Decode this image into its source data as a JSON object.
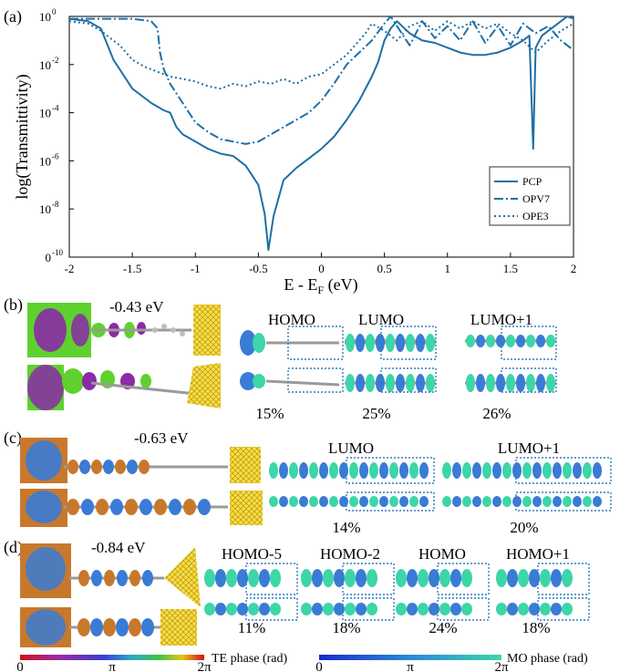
{
  "chart_data": {
    "type": "line",
    "panel_label": "(a)",
    "xlabel": "E - E",
    "xlabel_sub": "F",
    "xlabel_unit": " (eV)",
    "ylabel": "log(Transmittivity)",
    "xlim": [
      -2,
      2
    ],
    "ylim_exp": [
      -10,
      0
    ],
    "y_scale": "log",
    "x_ticks": [
      "-2",
      "-1.5",
      "-1",
      "-0.5",
      "0",
      "0.5",
      "1",
      "1.5",
      "2"
    ],
    "y_ticks": [
      {
        "base": "10",
        "exp": "0"
      },
      {
        "base": "10",
        "exp": "-2"
      },
      {
        "base": "10",
        "exp": "-4"
      },
      {
        "base": "10",
        "exp": "-6"
      },
      {
        "base": "10",
        "exp": "-8"
      },
      {
        "base": "0",
        "exp": "-10"
      }
    ],
    "legend_position": "bottom-right",
    "color": "#1f6fa6",
    "series": [
      {
        "name": "PCP",
        "dash": "solid",
        "x": [
          -2,
          -1.85,
          -1.75,
          -1.65,
          -1.5,
          -1.35,
          -1.25,
          -1.2,
          -1.15,
          -1.1,
          -1.0,
          -0.9,
          -0.8,
          -0.7,
          -0.6,
          -0.5,
          -0.45,
          -0.42,
          -0.38,
          -0.3,
          -0.2,
          -0.1,
          0.0,
          0.1,
          0.2,
          0.3,
          0.4,
          0.45,
          0.5,
          0.55,
          0.6,
          0.7,
          0.8,
          0.9,
          1.0,
          1.1,
          1.2,
          1.3,
          1.4,
          1.5,
          1.6,
          1.65,
          1.68,
          1.7,
          1.75,
          1.85,
          1.95,
          2.0
        ],
        "y": [
          -0.1,
          -0.2,
          -0.5,
          -1.8,
          -3.0,
          -3.6,
          -3.9,
          -4.0,
          -4.6,
          -4.9,
          -5.2,
          -5.5,
          -5.7,
          -5.8,
          -6.2,
          -7.0,
          -8.2,
          -9.7,
          -8.3,
          -6.8,
          -6.3,
          -5.9,
          -5.5,
          -5.0,
          -4.3,
          -3.5,
          -2.5,
          -1.9,
          -1.0,
          -0.5,
          -0.2,
          -0.7,
          -1.0,
          -1.1,
          -1.3,
          -1.5,
          -1.6,
          -1.6,
          -1.5,
          -1.3,
          -1.0,
          -0.8,
          -5.5,
          -1.3,
          -0.8,
          -0.4,
          0.0,
          -0.1
        ]
      },
      {
        "name": "OPV7",
        "dash": "dashdot",
        "x": [
          -2,
          -1.5,
          -1.35,
          -1.3,
          -1.28,
          -1.25,
          -1.2,
          -1.1,
          -1.0,
          -0.9,
          -0.8,
          -0.7,
          -0.6,
          -0.5,
          -0.4,
          -0.3,
          -0.2,
          -0.1,
          0.0,
          0.1,
          0.2,
          0.3,
          0.4,
          0.5,
          0.55,
          0.6,
          0.7,
          0.8,
          0.9,
          1.0,
          1.1,
          1.2,
          1.3,
          1.4,
          1.5,
          1.6,
          1.7,
          1.8,
          1.9,
          2.0
        ],
        "y": [
          -0.1,
          -0.1,
          -0.2,
          -0.5,
          -1.5,
          -2.2,
          -2.8,
          -3.6,
          -4.4,
          -4.8,
          -5.1,
          -5.2,
          -5.3,
          -5.2,
          -4.9,
          -4.6,
          -4.3,
          -4.0,
          -3.5,
          -2.8,
          -2.0,
          -1.5,
          -1.0,
          -0.3,
          0.0,
          -0.4,
          -1.2,
          -0.2,
          -0.9,
          -0.4,
          -1.0,
          -0.2,
          -1.1,
          -0.4,
          -1.2,
          -0.3,
          -0.7,
          -0.4,
          -1.0,
          -1.4
        ]
      },
      {
        "name": "OPE3",
        "dash": "dotted",
        "x": [
          -2,
          -1.85,
          -1.75,
          -1.6,
          -1.5,
          -1.4,
          -1.3,
          -1.2,
          -1.1,
          -1.0,
          -0.9,
          -0.8,
          -0.7,
          -0.6,
          -0.5,
          -0.4,
          -0.3,
          -0.2,
          -0.1,
          0.0,
          0.1,
          0.2,
          0.3,
          0.35,
          0.4,
          0.5,
          0.6,
          0.7,
          0.8,
          0.9,
          1.0,
          1.1,
          1.2,
          1.3,
          1.4,
          1.5,
          1.6,
          1.7,
          1.8,
          1.9,
          2.0
        ],
        "y": [
          -0.2,
          -0.3,
          -0.6,
          -1.2,
          -1.8,
          -2.1,
          -2.3,
          -2.5,
          -2.6,
          -2.7,
          -2.9,
          -3.0,
          -2.8,
          -2.9,
          -2.7,
          -2.8,
          -2.6,
          -2.8,
          -2.5,
          -2.4,
          -2.0,
          -1.6,
          -1.0,
          -0.7,
          -0.3,
          -0.6,
          -1.0,
          -0.4,
          -0.2,
          -0.6,
          -0.2,
          -0.5,
          -0.2,
          -0.5,
          -0.3,
          -0.7,
          -1.0,
          -1.5,
          -1.0,
          -0.6,
          -0.3
        ]
      }
    ]
  },
  "panels": {
    "b": {
      "label": "(b)",
      "energy": "-0.43 eV",
      "orbitals": [
        "HOMO",
        "LUMO",
        "LUMO+1"
      ],
      "percents": [
        "15%",
        "25%",
        "26%"
      ]
    },
    "c": {
      "label": "(c)",
      "energy": "-0.63 eV",
      "orbitals": [
        "LUMO",
        "LUMO+1"
      ],
      "percents": [
        "14%",
        "20%"
      ]
    },
    "d": {
      "label": "(d)",
      "energy": "-0.84 eV",
      "orbitals": [
        "HOMO-5",
        "HOMO-2",
        "HOMO",
        "HOMO+1"
      ],
      "percents": [
        "11%",
        "18%",
        "24%",
        "18%"
      ]
    }
  },
  "colorbars": {
    "te": {
      "label": "TE phase (rad)",
      "ticks": [
        "0",
        "π",
        "2π"
      ]
    },
    "mo": {
      "label": "MO phase (rad)",
      "ticks": [
        "0",
        "π",
        "2π"
      ]
    }
  },
  "colors": {
    "gold": "#e8c300",
    "lobe_blue": "#3a7bd5",
    "lobe_teal": "#3cd6a8",
    "lobe_orange": "#c8782c",
    "te_green": "#5fd12e",
    "te_purple": "#8a2aa6",
    "atom_grey": "#9a9a9a",
    "box_blue": "#2a7fbf"
  }
}
